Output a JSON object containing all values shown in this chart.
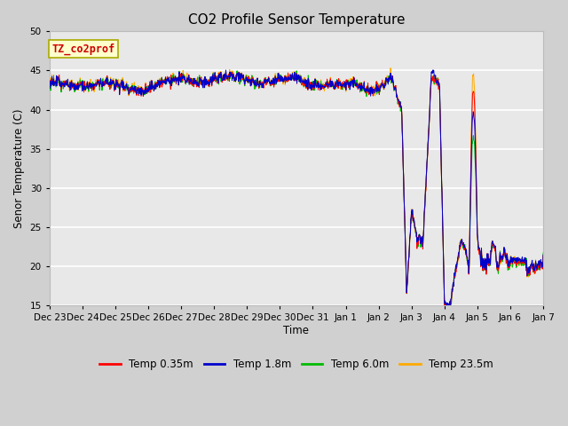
{
  "title": "CO2 Profile Sensor Temperature",
  "ylabel": "Senor Temperature (C)",
  "xlabel": "Time",
  "ylim": [
    15,
    50
  ],
  "annotation_text": "TZ_co2prof",
  "annotation_color": "#cc0000",
  "annotation_bg": "#ffffcc",
  "annotation_border": "#aaaa00",
  "legend_labels": [
    "Temp 0.35m",
    "Temp 1.8m",
    "Temp 6.0m",
    "Temp 23.5m"
  ],
  "legend_colors": [
    "#ff0000",
    "#0000cc",
    "#00bb00",
    "#ffaa00"
  ],
  "line_colors": [
    "#ff0000",
    "#0000cc",
    "#00bb00",
    "#ffaa00"
  ],
  "title_fontsize": 11,
  "tick_labels": [
    "Dec 23",
    "Dec 24",
    "Dec 25",
    "Dec 26",
    "Dec 27",
    "Dec 28",
    "Dec 29",
    "Dec 30",
    "Dec 31",
    "Jan 1",
    "Jan 2",
    "Jan 3",
    "Jan 4",
    "Jan 5",
    "Jan 6",
    "Jan 7"
  ]
}
